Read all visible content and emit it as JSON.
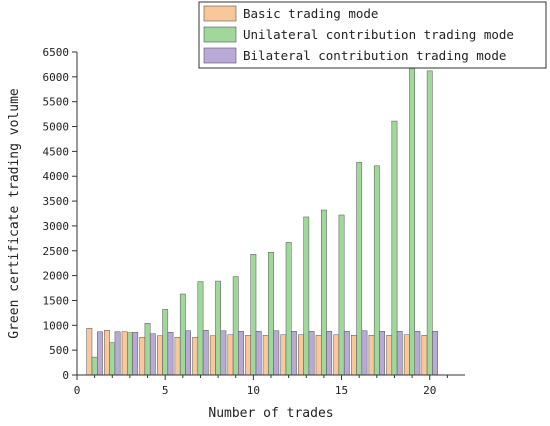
{
  "chart_data": {
    "type": "bar",
    "xlabel": "Number of trades",
    "ylabel": "Green certificate trading volume",
    "xlim": [
      0,
      22
    ],
    "ylim": [
      0,
      6500
    ],
    "x_ticks": [
      0,
      5,
      10,
      15,
      20
    ],
    "y_ticks": [
      0,
      500,
      1000,
      1500,
      2000,
      2500,
      3000,
      3500,
      4000,
      4500,
      5000,
      5500,
      6000,
      6500
    ],
    "grid": false,
    "legend_position": "top-right",
    "x": [
      1,
      2,
      3,
      4,
      5,
      6,
      7,
      8,
      9,
      10,
      11,
      12,
      13,
      14,
      15,
      16,
      17,
      18,
      19,
      20
    ],
    "series": [
      {
        "name": "Basic trading mode",
        "color": "#f9c89a",
        "values": [
          940,
          900,
          870,
          760,
          790,
          760,
          760,
          790,
          810,
          800,
          800,
          810,
          810,
          800,
          810,
          800,
          800,
          800,
          810,
          800
        ]
      },
      {
        "name": "Unilateral contribution trading mode",
        "color": "#9fd89a",
        "values": [
          360,
          650,
          850,
          1040,
          1320,
          1630,
          1880,
          1890,
          1980,
          2430,
          2470,
          2670,
          3180,
          3320,
          3220,
          4280,
          4210,
          5110,
          6170,
          6120
        ]
      },
      {
        "name": "Bilateral contribution trading mode",
        "color": "#b9a9d6",
        "values": [
          870,
          870,
          860,
          830,
          860,
          890,
          900,
          890,
          880,
          880,
          890,
          880,
          880,
          880,
          880,
          890,
          880,
          880,
          880,
          880
        ]
      }
    ]
  }
}
